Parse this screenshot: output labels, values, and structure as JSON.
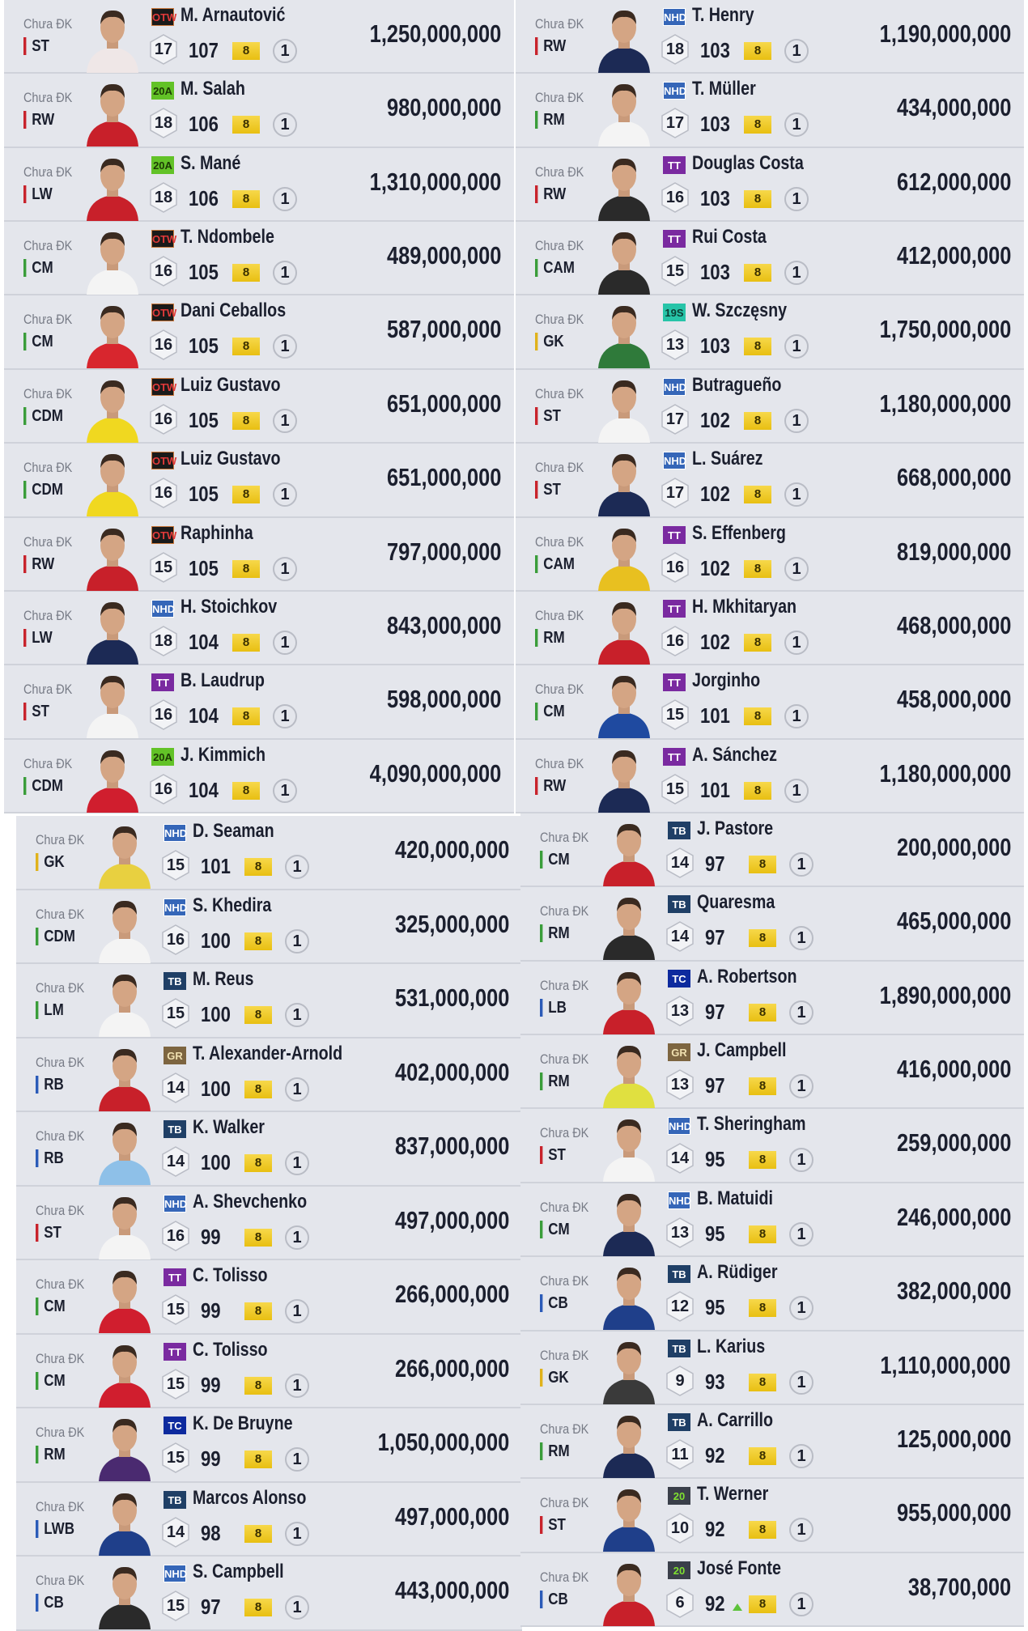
{
  "status_label": "Chưa ĐK",
  "enhance_level": "8",
  "count": "1",
  "position_colors": {
    "ST": "#c8232c",
    "RW": "#c8232c",
    "LW": "#c8232c",
    "CM": "#3a9d3a",
    "CDM": "#3a9d3a",
    "CAM": "#3a9d3a",
    "RM": "#3a9d3a",
    "LM": "#3a9d3a",
    "CB": "#2b5bb8",
    "LB": "#2b5bb8",
    "RB": "#2b5bb8",
    "LWB": "#2b5bb8",
    "GK": "#e0b21b"
  },
  "season_styles": {
    "OTW": {
      "bg": "#1a1a1a",
      "fg": "#e23a3a",
      "border": "#c9773a"
    },
    "20A": {
      "bg": "#62c227",
      "fg": "#1d3a05",
      "border": "#62c227"
    },
    "NHD": {
      "bg": "#3566b8",
      "fg": "#ffffff",
      "border": "#ffffff"
    },
    "TT": {
      "bg": "#7a2aa0",
      "fg": "#ffffff",
      "border": "#7a2aa0"
    },
    "19S": {
      "bg": "#27c4a8",
      "fg": "#0b3d33",
      "border": "#27c4a8"
    },
    "TB": {
      "bg": "#1f3f66",
      "fg": "#ffffff",
      "border": "#1f3f66"
    },
    "GR": {
      "bg": "#7d6540",
      "fg": "#f0e0b0",
      "border": "#7d6540"
    },
    "TC": {
      "bg": "#0d2a9e",
      "fg": "#ffffff",
      "border": "#0d2a9e"
    },
    "20": {
      "bg": "#3a3f4a",
      "fg": "#7fe030",
      "border": "#3a3f4a"
    }
  },
  "panels": [
    {
      "rows": [
        {
          "pos": "ST",
          "season": "OTW",
          "name": "M. Arnautović",
          "level": "17",
          "ovr": "107",
          "price": "1,250,000,000",
          "kit": "#efe7e7"
        },
        {
          "pos": "RW",
          "season": "20A",
          "name": "M. Salah",
          "level": "18",
          "ovr": "106",
          "price": "980,000,000",
          "kit": "#c8202a"
        },
        {
          "pos": "LW",
          "season": "20A",
          "name": "S. Mané",
          "level": "18",
          "ovr": "106",
          "price": "1,310,000,000",
          "kit": "#c8202a"
        },
        {
          "pos": "CM",
          "season": "OTW",
          "name": "T. Ndombele",
          "level": "16",
          "ovr": "105",
          "price": "489,000,000",
          "kit": "#f4f4f4"
        },
        {
          "pos": "CM",
          "season": "OTW",
          "name": "Dani Ceballos",
          "level": "16",
          "ovr": "105",
          "price": "587,000,000",
          "kit": "#d8262e"
        },
        {
          "pos": "CDM",
          "season": "OTW",
          "name": "Luiz Gustavo",
          "level": "16",
          "ovr": "105",
          "price": "651,000,000",
          "kit": "#f0d820"
        },
        {
          "pos": "CDM",
          "season": "OTW",
          "name": "Luiz Gustavo",
          "level": "16",
          "ovr": "105",
          "price": "651,000,000",
          "kit": "#f0d820"
        },
        {
          "pos": "RW",
          "season": "OTW",
          "name": "Raphinha",
          "level": "15",
          "ovr": "105",
          "price": "797,000,000",
          "kit": "#c8202a"
        },
        {
          "pos": "LW",
          "season": "NHD",
          "name": "H. Stoichkov",
          "level": "18",
          "ovr": "104",
          "price": "843,000,000",
          "kit": "#1c2a55"
        },
        {
          "pos": "ST",
          "season": "TT",
          "name": "B. Laudrup",
          "level": "16",
          "ovr": "104",
          "price": "598,000,000",
          "kit": "#f4f4f4"
        },
        {
          "pos": "CDM",
          "season": "20A",
          "name": "J. Kimmich",
          "level": "16",
          "ovr": "104",
          "price": "4,090,000,000",
          "kit": "#d01e2e"
        }
      ]
    },
    {
      "rows": [
        {
          "pos": "RW",
          "season": "NHD",
          "name": "T. Henry",
          "level": "18",
          "ovr": "103",
          "price": "1,190,000,000",
          "kit": "#1c2a55"
        },
        {
          "pos": "RM",
          "season": "NHD",
          "name": "T. Müller",
          "level": "17",
          "ovr": "103",
          "price": "434,000,000",
          "kit": "#f4f4f4"
        },
        {
          "pos": "RW",
          "season": "TT",
          "name": "Douglas Costa",
          "level": "16",
          "ovr": "103",
          "price": "612,000,000",
          "kit": "#2a2a2a"
        },
        {
          "pos": "CAM",
          "season": "TT",
          "name": "Rui Costa",
          "level": "15",
          "ovr": "103",
          "price": "412,000,000",
          "kit": "#2a2a2a"
        },
        {
          "pos": "GK",
          "season": "19S",
          "name": "W. Szczęsny",
          "level": "13",
          "ovr": "103",
          "price": "1,750,000,000",
          "kit": "#2f7a3a"
        },
        {
          "pos": "ST",
          "season": "NHD",
          "name": "Butragueño",
          "level": "17",
          "ovr": "102",
          "price": "1,180,000,000",
          "kit": "#f4f4f4"
        },
        {
          "pos": "ST",
          "season": "NHD",
          "name": "L. Suárez",
          "level": "17",
          "ovr": "102",
          "price": "668,000,000",
          "kit": "#1c2a55"
        },
        {
          "pos": "CAM",
          "season": "TT",
          "name": "S. Effenberg",
          "level": "16",
          "ovr": "102",
          "price": "819,000,000",
          "kit": "#e8c020"
        },
        {
          "pos": "RM",
          "season": "TT",
          "name": "H. Mkhitaryan",
          "level": "16",
          "ovr": "102",
          "price": "468,000,000",
          "kit": "#c8202a"
        },
        {
          "pos": "CM",
          "season": "TT",
          "name": "Jorginho",
          "level": "15",
          "ovr": "101",
          "price": "458,000,000",
          "kit": "#1f4aa0"
        },
        {
          "pos": "RW",
          "season": "TT",
          "name": "A. Sánchez",
          "level": "15",
          "ovr": "101",
          "price": "1,180,000,000",
          "kit": "#1c2a55"
        }
      ]
    },
    {
      "rows": [
        {
          "pos": "GK",
          "season": "NHD",
          "name": "D. Seaman",
          "level": "15",
          "ovr": "101",
          "price": "420,000,000",
          "kit": "#e8d040"
        },
        {
          "pos": "CDM",
          "season": "NHD",
          "name": "S. Khedira",
          "level": "16",
          "ovr": "100",
          "price": "325,000,000",
          "kit": "#f4f4f4"
        },
        {
          "pos": "LM",
          "season": "TB",
          "name": "M. Reus",
          "level": "15",
          "ovr": "100",
          "price": "531,000,000",
          "kit": "#f4f4f4"
        },
        {
          "pos": "RB",
          "season": "GR",
          "name": "T. Alexander-Arnold",
          "level": "14",
          "ovr": "100",
          "price": "402,000,000",
          "kit": "#c8202a"
        },
        {
          "pos": "RB",
          "season": "TB",
          "name": "K. Walker",
          "level": "14",
          "ovr": "100",
          "price": "837,000,000",
          "kit": "#8ec0e8"
        },
        {
          "pos": "ST",
          "season": "NHD",
          "name": "A. Shevchenko",
          "level": "16",
          "ovr": "99",
          "price": "497,000,000",
          "kit": "#f4f4f4"
        },
        {
          "pos": "CM",
          "season": "TT",
          "name": "C. Tolisso",
          "level": "15",
          "ovr": "99",
          "price": "266,000,000",
          "kit": "#d01e2e"
        },
        {
          "pos": "CM",
          "season": "TT",
          "name": "C. Tolisso",
          "level": "15",
          "ovr": "99",
          "price": "266,000,000",
          "kit": "#d01e2e"
        },
        {
          "pos": "RM",
          "season": "TC",
          "name": "K. De Bruyne",
          "level": "15",
          "ovr": "99",
          "price": "1,050,000,000",
          "kit": "#4a2a70"
        },
        {
          "pos": "LWB",
          "season": "TB",
          "name": "Marcos Alonso",
          "level": "14",
          "ovr": "98",
          "price": "497,000,000",
          "kit": "#1f3f8a"
        },
        {
          "pos": "CB",
          "season": "NHD",
          "name": "S. Campbell",
          "level": "15",
          "ovr": "97",
          "price": "443,000,000",
          "kit": "#2a2a2a"
        }
      ]
    },
    {
      "rows": [
        {
          "pos": "CM",
          "season": "TB",
          "name": "J. Pastore",
          "level": "14",
          "ovr": "97",
          "price": "200,000,000",
          "kit": "#c8202a"
        },
        {
          "pos": "RM",
          "season": "TB",
          "name": "Quaresma",
          "level": "14",
          "ovr": "97",
          "price": "465,000,000",
          "kit": "#2a2a2a"
        },
        {
          "pos": "LB",
          "season": "TC",
          "name": "A. Robertson",
          "level": "13",
          "ovr": "97",
          "price": "1,890,000,000",
          "kit": "#c8202a"
        },
        {
          "pos": "RM",
          "season": "GR",
          "name": "J. Campbell",
          "level": "13",
          "ovr": "97",
          "price": "416,000,000",
          "kit": "#e0e040"
        },
        {
          "pos": "ST",
          "season": "NHD",
          "name": "T. Sheringham",
          "level": "14",
          "ovr": "95",
          "price": "259,000,000",
          "kit": "#f4f4f4"
        },
        {
          "pos": "CM",
          "season": "NHD",
          "name": "B. Matuidi",
          "level": "13",
          "ovr": "95",
          "price": "246,000,000",
          "kit": "#1c2a55"
        },
        {
          "pos": "CB",
          "season": "TB",
          "name": "A. Rüdiger",
          "level": "12",
          "ovr": "95",
          "price": "382,000,000",
          "kit": "#1f3f8a"
        },
        {
          "pos": "GK",
          "season": "TB",
          "name": "L. Karius",
          "level": "9",
          "ovr": "93",
          "price": "1,110,000,000",
          "kit": "#3a3a3a"
        },
        {
          "pos": "RM",
          "season": "TB",
          "name": "A. Carrillo",
          "level": "11",
          "ovr": "92",
          "price": "125,000,000",
          "kit": "#1c2a55"
        },
        {
          "pos": "ST",
          "season": "20",
          "name": "T. Werner",
          "level": "10",
          "ovr": "92",
          "price": "955,000,000",
          "kit": "#1f3f8a"
        },
        {
          "pos": "CB",
          "season": "20",
          "name": "José Fonte",
          "level": "6",
          "ovr": "92",
          "price": "38,700,000",
          "kit": "#c8202a",
          "ovr_up": true
        }
      ]
    }
  ]
}
